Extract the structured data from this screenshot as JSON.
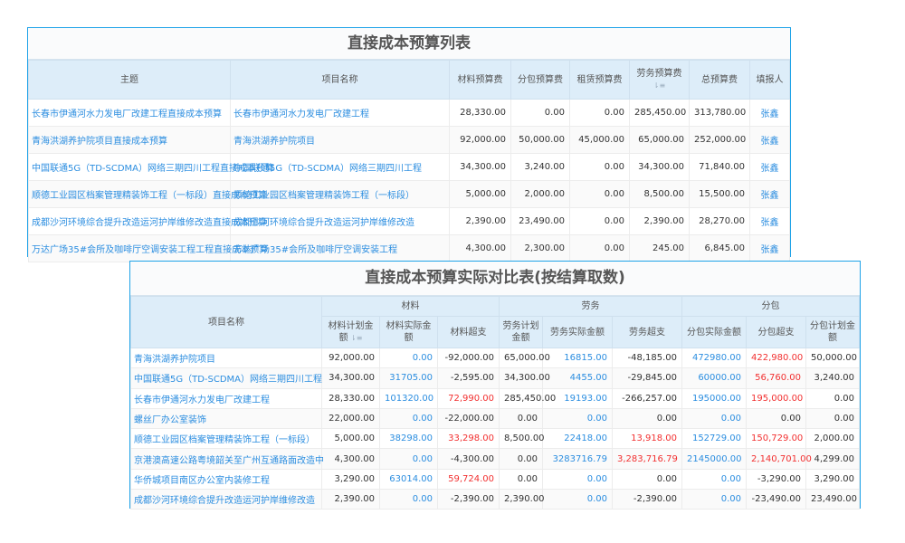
{
  "table1": {
    "title": "直接成本预算列表",
    "headers": [
      "主题",
      "项目名称",
      "材料预算费",
      "分包预算费",
      "租赁预算费",
      "劳务预算费",
      "总预算费",
      "填报人"
    ],
    "rows": [
      [
        "长春市伊通河水力发电厂改建工程直接成本预算",
        "长春市伊通河水力发电厂改建工程",
        "28,330.00",
        "0.00",
        "0.00",
        "285,450.00",
        "313,780.00",
        "张鑫"
      ],
      [
        "青海洪湖养护院项目直接成本预算",
        "青海洪湖养护院项目",
        "92,000.00",
        "50,000.00",
        "45,000.00",
        "65,000.00",
        "252,000.00",
        "张鑫"
      ],
      [
        "中国联通5G（TD-SCDMA）网络三期四川工程直接成本预算",
        "中国联通5G（TD-SCDMA）网络三期四川工程",
        "34,300.00",
        "3,240.00",
        "0.00",
        "34,300.00",
        "71,840.00",
        "张鑫"
      ],
      [
        "顺德工业园区档案管理精装饰工程（一标段）直接成本预算",
        "顺德工业园区档案管理精装饰工程（一标段）",
        "5,000.00",
        "2,000.00",
        "0.00",
        "8,500.00",
        "15,500.00",
        "张鑫"
      ],
      [
        "成都沙河环境综合提升改造运河护岸维修改造直接成本预算",
        "成都沙河环境综合提升改造运河护岸维修改造",
        "2,390.00",
        "23,490.00",
        "0.00",
        "2,390.00",
        "28,270.00",
        "张鑫"
      ],
      [
        "万达广场35#会所及咖啡厅空调安装工程工程直接成本预算",
        "万达广场35#会所及咖啡厅空调安装工程",
        "4,300.00",
        "2,300.00",
        "0.00",
        "245.00",
        "6,845.00",
        "张鑫"
      ]
    ]
  },
  "table2": {
    "title": "直接成本预算实际对比表(按结算取数)",
    "project_header": "项目名称",
    "groups": [
      "材料",
      "劳务",
      "分包"
    ],
    "headers": [
      "材料计划金额",
      "材料实际金额",
      "材料超支",
      "劳务计划金额",
      "劳务实际金额",
      "劳务超支",
      "分包实际金额",
      "分包超支",
      "分包计划金额"
    ],
    "rows": [
      [
        "青海洪湖养护院项目",
        "92,000.00",
        "0.00",
        "-92,000.00",
        "65,000.00",
        "16815.00",
        "-48,185.00",
        "472980.00",
        "422,980.00",
        "50,000.00"
      ],
      [
        "中国联通5G（TD-SCDMA）网络三期四川工程",
        "34,300.00",
        "31705.00",
        "-2,595.00",
        "34,300.00",
        "4455.00",
        "-29,845.00",
        "60000.00",
        "56,760.00",
        "3,240.00"
      ],
      [
        "长春市伊通河水力发电厂改建工程",
        "28,330.00",
        "101320.00",
        "72,990.00",
        "285,450.00",
        "19193.00",
        "-266,257.00",
        "195000.00",
        "195,000.00",
        "0.00"
      ],
      [
        "螺丝厂办公室装饰",
        "22,000.00",
        "0.00",
        "-22,000.00",
        "0.00",
        "0.00",
        "0.00",
        "0.00",
        "0.00",
        "0.00"
      ],
      [
        "顺德工业园区档案管理精装饰工程（一标段）",
        "5,000.00",
        "38298.00",
        "33,298.00",
        "8,500.00",
        "22418.00",
        "13,918.00",
        "152729.00",
        "150,729.00",
        "2,000.00"
      ],
      [
        "京港澳高速公路粤境韶关至广州互通路面改造中",
        "4,300.00",
        "0.00",
        "-4,300.00",
        "0.00",
        "3283716.79",
        "3,283,716.79",
        "2145000.00",
        "2,140,701.00",
        "4,299.00"
      ],
      [
        "华侨城项目南区办公室内装修工程",
        "3,290.00",
        "63014.00",
        "59,724.00",
        "0.00",
        "0.00",
        "0.00",
        "0.00",
        "-3,290.00",
        "3,290.00"
      ],
      [
        "成都沙河环境综合提升改造运河护岸维修改造",
        "2,390.00",
        "0.00",
        "-2,390.00",
        "2,390.00",
        "0.00",
        "-2,390.00",
        "0.00",
        "-23,490.00",
        "23,490.00"
      ]
    ]
  },
  "colors": {
    "link": "#2c8ee0",
    "over": "#f23030",
    "border": "#1fa3e8",
    "header_bg": "#ddedf9"
  }
}
